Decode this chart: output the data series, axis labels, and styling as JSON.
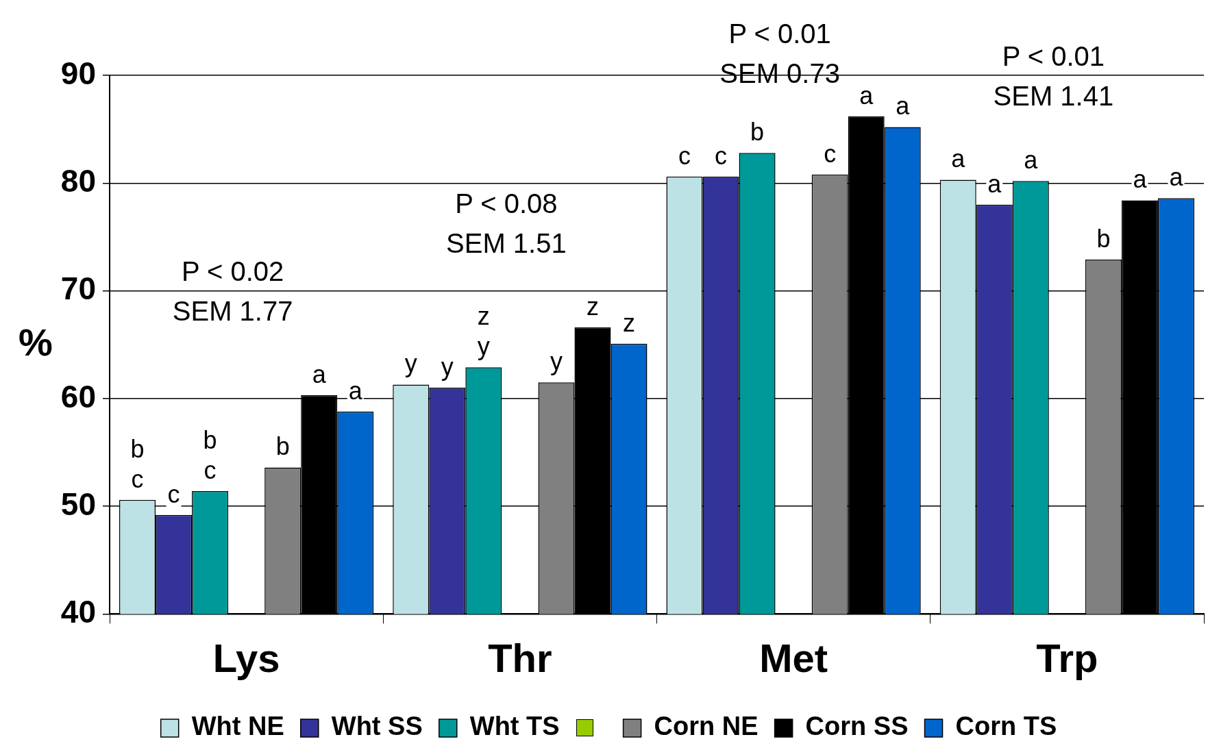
{
  "chart_data": {
    "type": "bar",
    "ylabel": "%",
    "categories": [
      "Lys",
      "Thr",
      "Met",
      "Trp"
    ],
    "series": [
      {
        "name": "Wht NE",
        "color": "#bde2e5",
        "values": [
          50.6,
          61.3,
          80.6,
          80.3
        ],
        "value_labels": [
          "b\nc",
          "y",
          "c",
          "a"
        ]
      },
      {
        "name": "Wht SS",
        "color": "#333399",
        "values": [
          49.2,
          61.0,
          80.6,
          78.0
        ],
        "value_labels": [
          "c",
          "y",
          "c",
          "a"
        ]
      },
      {
        "name": "Wht TS",
        "color": "#009999",
        "values": [
          51.4,
          62.9,
          82.8,
          80.2
        ],
        "value_labels": [
          "b\nc",
          "z\ny",
          "b",
          "a"
        ]
      },
      {
        "color": "#99cc00",
        "values": [
          null,
          null,
          null,
          null
        ]
      },
      {
        "name": "Corn NE",
        "color": "#808080",
        "values": [
          53.6,
          61.5,
          80.8,
          72.9
        ],
        "value_labels": [
          "b",
          "y",
          "c",
          "b"
        ]
      },
      {
        "name": "Corn SS",
        "color": "#000000",
        "values": [
          60.3,
          66.6,
          86.2,
          78.4
        ],
        "value_labels": [
          "a",
          "z",
          "a",
          "a"
        ]
      },
      {
        "name": "Corn TS",
        "color": "#0066cc",
        "values": [
          58.8,
          65.1,
          85.2,
          78.6
        ],
        "value_labels": [
          "a",
          "z",
          "a",
          "a"
        ]
      }
    ],
    "ylim": [
      40,
      90
    ],
    "yticks": [
      40,
      50,
      60,
      70,
      80,
      90
    ],
    "grid": "y",
    "legend": "bottom",
    "annotations": [
      "P < 0.02",
      "SEM 1.77",
      "P < 0.08",
      "SEM 1.51",
      "P < 0.01",
      "SEM 0.73",
      "P < 0.01",
      "SEM 1.41"
    ]
  }
}
